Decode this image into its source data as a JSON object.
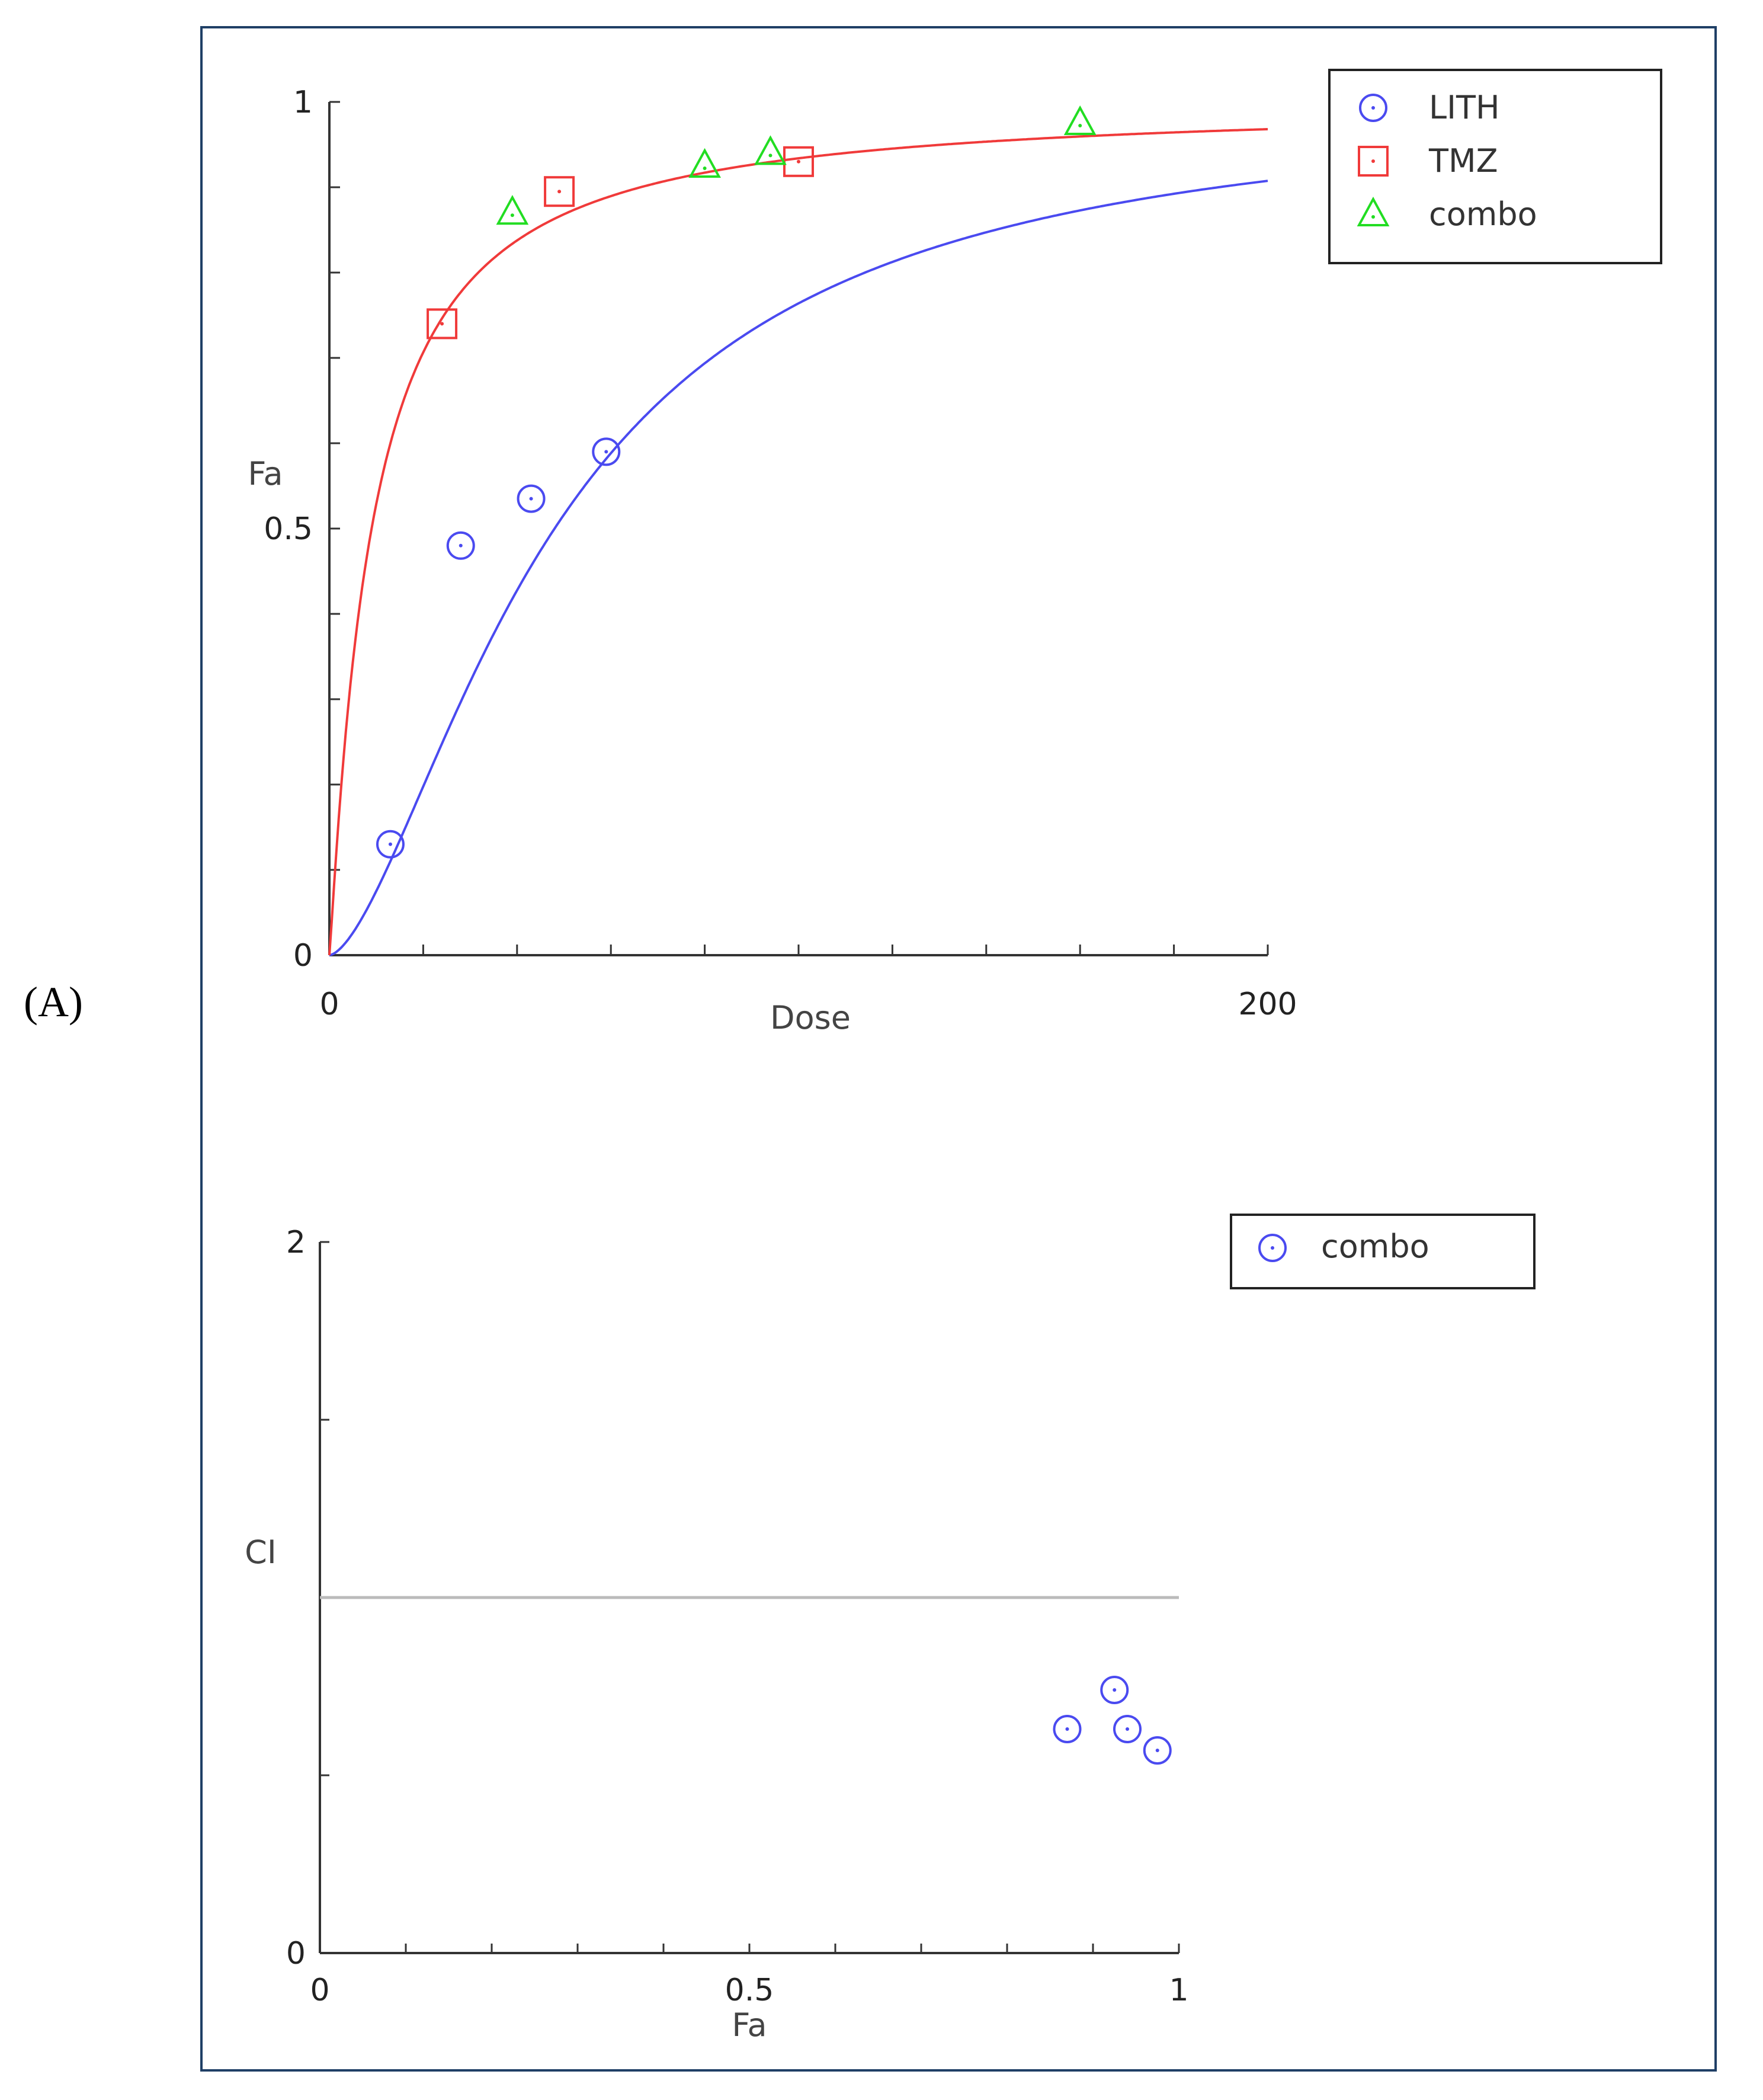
{
  "panel_label": "(A)",
  "colors": {
    "LITH": "#4a4af0",
    "TMZ": "#f03a3a",
    "combo": "#22dd22",
    "reference": "#bbbbbb",
    "axis": "#333333"
  },
  "chart_data": [
    {
      "type": "scatter",
      "xlabel": "Dose",
      "ylabel": "Fa",
      "xlim": [
        0,
        200
      ],
      "ylim": [
        0,
        1
      ],
      "x_ticks": [
        "0",
        "200"
      ],
      "y_ticks": [
        "0",
        "0.5",
        "1"
      ],
      "legend_position": "top-right",
      "series": [
        {
          "name": "LITH",
          "marker": "circle",
          "color": "#4a4af0",
          "x": [
            13,
            28,
            43,
            59
          ],
          "y": [
            0.13,
            0.48,
            0.535,
            0.59
          ],
          "fit": {
            "dm": 48,
            "m": 1.6
          }
        },
        {
          "name": "TMZ",
          "marker": "square",
          "color": "#f03a3a",
          "x": [
            24,
            49,
            100
          ],
          "y": [
            0.74,
            0.895,
            0.93
          ],
          "fit": {
            "dm": 9,
            "m": 1.1
          }
        },
        {
          "name": "combo",
          "marker": "triangle",
          "color": "#22dd22",
          "x": [
            39,
            80,
            94,
            160
          ],
          "y": [
            0.87,
            0.925,
            0.94,
            0.975
          ]
        }
      ]
    },
    {
      "type": "scatter",
      "xlabel": "Fa",
      "ylabel": "CI",
      "xlim": [
        0,
        1
      ],
      "ylim": [
        0,
        2
      ],
      "x_ticks": [
        "0",
        "0.5",
        "1"
      ],
      "y_ticks": [
        "0",
        "2"
      ],
      "reference_line": 1,
      "legend_position": "top-right",
      "series": [
        {
          "name": "combo",
          "marker": "circle",
          "color": "#4a4af0",
          "x": [
            0.87,
            0.925,
            0.94,
            0.975
          ],
          "y": [
            0.63,
            0.74,
            0.63,
            0.57
          ]
        }
      ]
    }
  ]
}
